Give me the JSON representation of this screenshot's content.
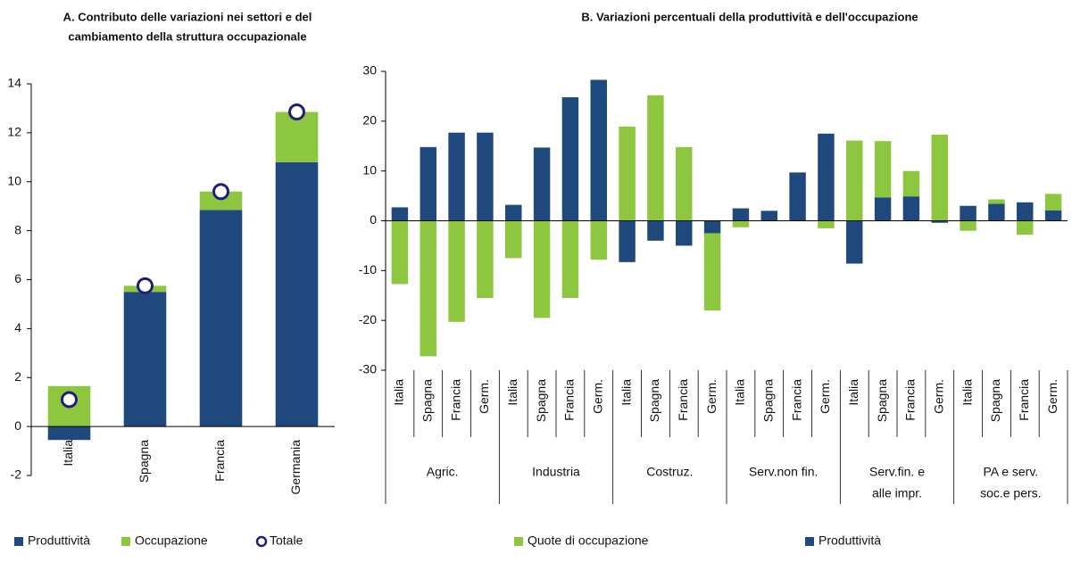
{
  "chart_data": [
    {
      "type": "bar",
      "stacked": true,
      "title": [
        "A. Contributo delle variazioni nei settori e del",
        "cambiamento della struttura occupazionale"
      ],
      "categories": [
        "Italia",
        "Spagna",
        "Francia",
        "Germania"
      ],
      "series": [
        {
          "name": "Produttività",
          "color": "#1f497d",
          "kind": "bar",
          "values": [
            -0.55,
            5.5,
            8.85,
            10.8
          ]
        },
        {
          "name": "Occupazione",
          "color": "#8dc63f",
          "kind": "bar",
          "values": [
            1.65,
            0.25,
            0.75,
            2.05
          ]
        },
        {
          "name": "Totale",
          "color": "#1f1f7a",
          "kind": "circle",
          "values": [
            1.1,
            5.75,
            9.6,
            12.85
          ]
        }
      ],
      "ylim": [
        -2,
        14
      ],
      "yticks": [
        -2,
        0,
        2,
        4,
        6,
        8,
        10,
        12,
        14
      ]
    },
    {
      "type": "bar",
      "stacked": true,
      "title": [
        "B. Variazioni percentuali della produttività e dell'occupazione"
      ],
      "categories": [
        "Italia",
        "Spagna",
        "Francia",
        "Germ.",
        "Italia",
        "Spagna",
        "Francia",
        "Germ.",
        "Italia",
        "Spagna",
        "Francia",
        "Germ.",
        "Italia",
        "Spagna",
        "Francia",
        "Germ.",
        "Italia",
        "Spagna",
        "Francia",
        "Germ.",
        "Italia",
        "Spagna",
        "Francia",
        "Germ."
      ],
      "groups": [
        [
          "Agric."
        ],
        [
          "Industria"
        ],
        [
          "Costruz."
        ],
        [
          "Serv.non fin."
        ],
        [
          "Serv.fin. e",
          "alle impr."
        ],
        [
          "PA e serv.",
          "soc.e pers."
        ]
      ],
      "series": [
        {
          "name": "Produttività",
          "color": "#1f497d",
          "kind": "bar",
          "values": [
            2.7,
            14.8,
            17.7,
            17.7,
            3.2,
            14.7,
            24.8,
            28.3,
            -8.3,
            -4.0,
            -5.0,
            -2.5,
            2.5,
            2.0,
            9.7,
            17.5,
            -8.6,
            4.7,
            4.9,
            -0.4,
            3.0,
            3.4,
            3.7,
            2.1
          ]
        },
        {
          "name": "Quote di occupazione",
          "color": "#8dc63f",
          "kind": "bar",
          "values": [
            -12.7,
            -27.2,
            -20.3,
            -15.5,
            -7.5,
            -19.5,
            -15.5,
            -7.8,
            18.9,
            25.2,
            14.8,
            -15.5,
            -1.3,
            0,
            0,
            -1.5,
            16.1,
            11.3,
            5.1,
            17.3,
            -2.0,
            0.9,
            -2.8,
            3.3
          ]
        }
      ],
      "legend_order": [
        1,
        0
      ],
      "ylim": [
        -30,
        30
      ],
      "yticks": [
        -30,
        -20,
        -10,
        0,
        10,
        20,
        30
      ]
    }
  ]
}
